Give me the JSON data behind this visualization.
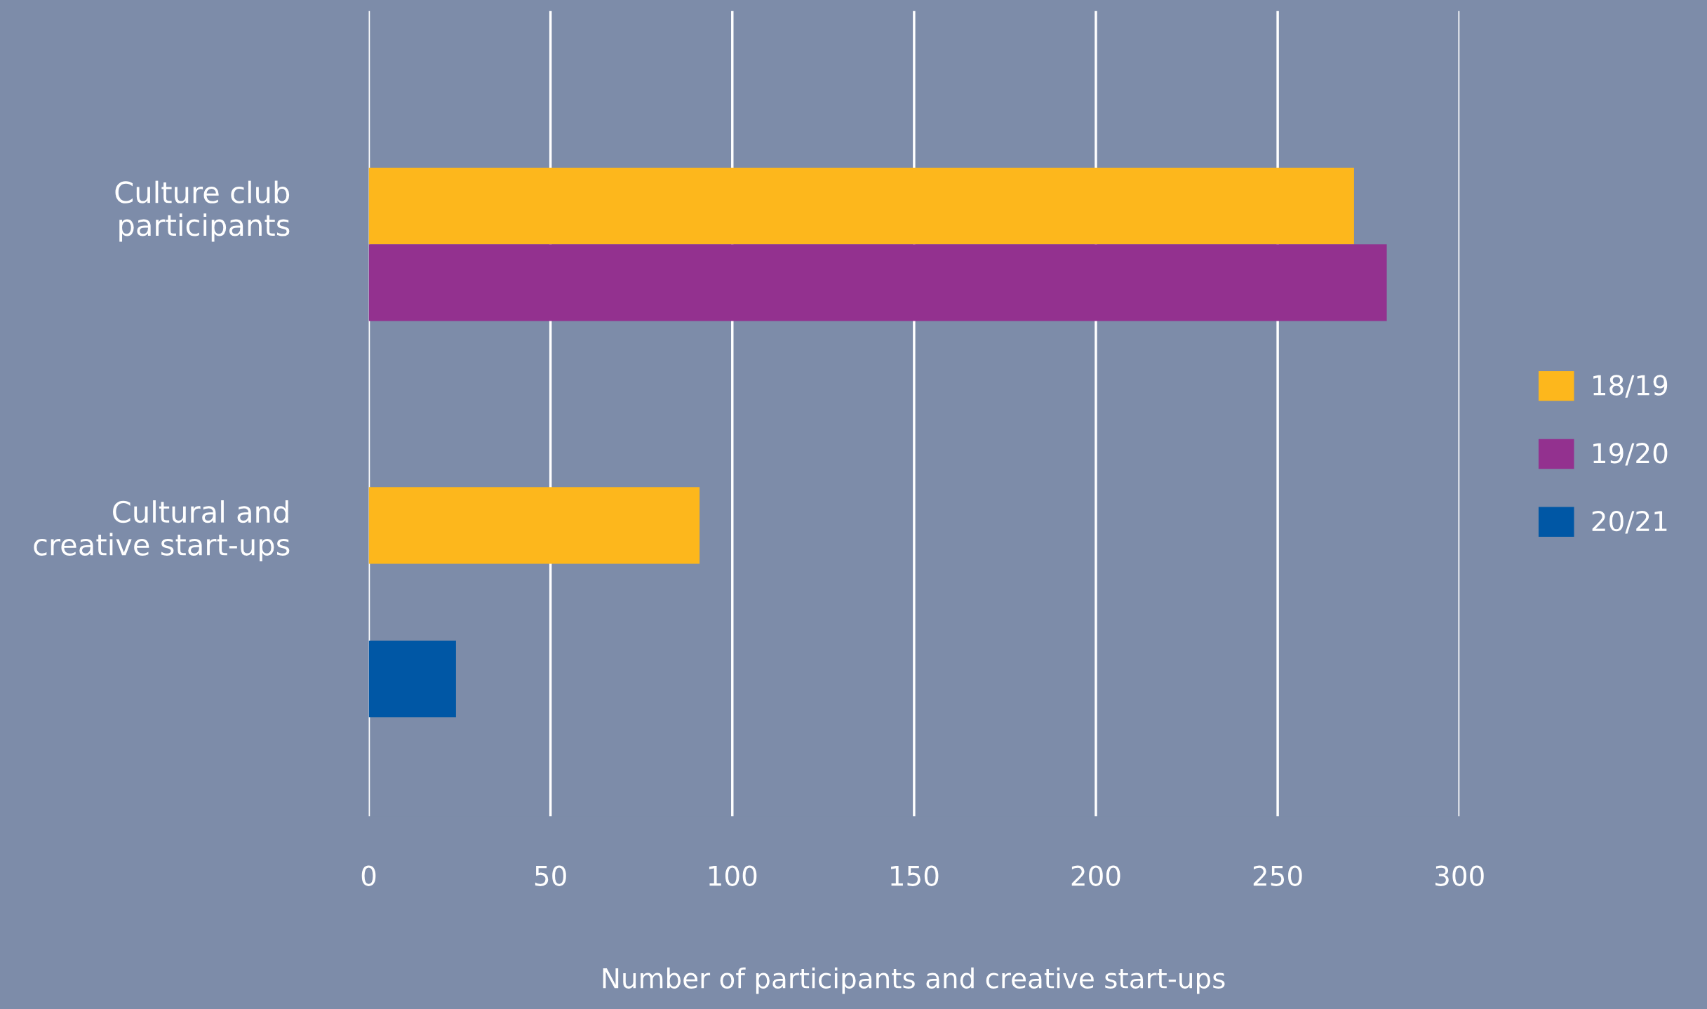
{
  "chart_data": {
    "type": "bar",
    "orientation": "horizontal",
    "xlabel": "Number of participants and creative start-ups",
    "categories": [
      "Culture club\nparticipants",
      "Cultural and\ncreative start-ups"
    ],
    "series": [
      {
        "name": "18/19",
        "color": "#fdb71c",
        "values": [
          271,
          91
        ]
      },
      {
        "name": "19/20",
        "color": "#93318f",
        "values": [
          280,
          null
        ]
      },
      {
        "name": "20/21",
        "color": "#0057a5",
        "values": [
          null,
          24
        ]
      }
    ],
    "xlim": [
      0,
      300
    ],
    "xticks": [
      0,
      50,
      100,
      150,
      200,
      250,
      300
    ],
    "grid": "x",
    "legend": "right"
  }
}
